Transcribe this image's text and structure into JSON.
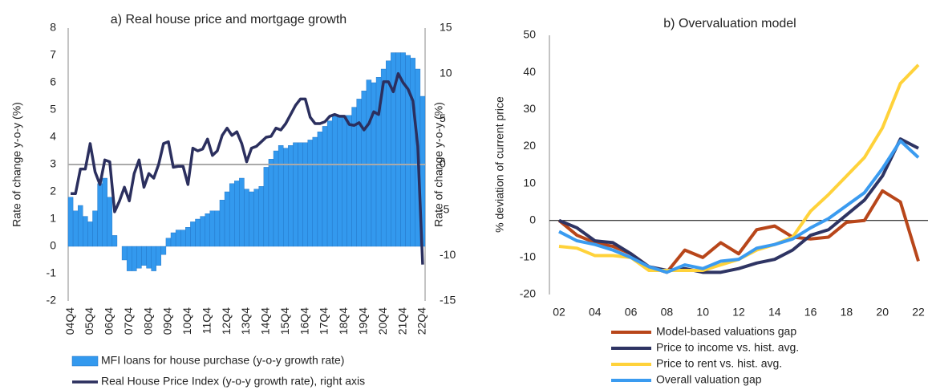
{
  "chart_data": [
    {
      "type": "bar",
      "title": "a) Real house price and mortgage growth",
      "ylabel": "Rate of change y-o-y (%)",
      "y2label": "Rate of change y-o-y (%)",
      "categories": [
        "04Q4",
        null,
        null,
        null,
        "05Q4",
        null,
        null,
        null,
        "06Q4",
        null,
        null,
        null,
        "07Q4",
        null,
        null,
        null,
        "08Q4",
        null,
        null,
        null,
        "09Q4",
        null,
        null,
        null,
        "10Q4",
        null,
        null,
        null,
        "11Q4",
        null,
        null,
        null,
        "12Q4",
        null,
        null,
        null,
        "13Q4",
        null,
        null,
        null,
        "14Q4",
        null,
        null,
        null,
        "15Q4",
        null,
        null,
        null,
        "16Q4",
        null,
        null,
        null,
        "17Q4",
        null,
        null,
        null,
        "18Q4",
        null,
        null,
        null,
        "19Q4",
        null,
        null,
        null,
        "20Q4",
        null,
        null,
        null,
        "21Q4",
        null,
        null,
        null,
        "22Q4"
      ],
      "ylim": [
        -2,
        8
      ],
      "yticks": [
        -2,
        -1,
        0,
        1,
        2,
        3,
        4,
        5,
        6,
        7,
        8
      ],
      "y2lim": [
        -15,
        15
      ],
      "y2ticks": [
        -15,
        -10,
        -5,
        0,
        5,
        10,
        15
      ],
      "series": [
        {
          "name": "MFI loans for house purchase (y-o-y growth rate)",
          "type": "bar",
          "color": "#3399ee",
          "values": [
            1.8,
            1.3,
            1.5,
            1.1,
            0.9,
            1.3,
            2.3,
            2.5,
            1.8,
            0.4,
            0.0,
            -0.5,
            -0.9,
            -0.9,
            -0.8,
            -0.7,
            -0.8,
            -0.9,
            -0.7,
            -0.3,
            0.3,
            0.5,
            0.6,
            0.6,
            0.7,
            0.9,
            1.0,
            1.1,
            1.2,
            1.3,
            1.3,
            1.7,
            2.0,
            2.3,
            2.4,
            2.5,
            2.1,
            2.0,
            2.1,
            2.2,
            2.9,
            3.2,
            3.5,
            3.7,
            3.6,
            3.7,
            3.8,
            3.8,
            3.8,
            3.9,
            4.0,
            4.2,
            4.4,
            4.6,
            4.8,
            4.8,
            4.8,
            4.8,
            5.1,
            5.4,
            5.7,
            6.1,
            6.0,
            6.2,
            6.5,
            6.8,
            7.1,
            7.1,
            7.1,
            7.0,
            6.9,
            6.5,
            5.5
          ]
        },
        {
          "name": "Real House Price Index (y-o-y growth rate), right axis",
          "type": "line",
          "axis": "y2",
          "color": "#2b2f5e",
          "values": [
            -3.2,
            -3.2,
            -0.5,
            -0.5,
            2.3,
            -0.8,
            -2.2,
            0.5,
            0.3,
            -5.2,
            -4.0,
            -2.5,
            -4.0,
            -1.0,
            0.5,
            -2.5,
            -1.0,
            -1.5,
            0.0,
            2.3,
            2.5,
            -0.3,
            -0.2,
            -0.2,
            -2.2,
            1.8,
            1.5,
            1.7,
            2.8,
            1.0,
            1.5,
            3.2,
            4.0,
            3.2,
            3.6,
            2.3,
            0.3,
            1.8,
            2.0,
            2.5,
            3.0,
            3.1,
            4.0,
            3.8,
            4.5,
            5.5,
            6.5,
            7.2,
            7.2,
            5.2,
            4.5,
            4.5,
            4.7,
            5.3,
            5.5,
            5.3,
            5.3,
            4.4,
            4.3,
            4.6,
            3.8,
            4.5,
            5.8,
            5.5,
            9.1,
            9.1,
            8.0,
            10.0,
            9.0,
            8.3,
            7.0,
            2.0,
            -11.0
          ]
        }
      ]
    },
    {
      "type": "line",
      "title": "b) Overvaluation model",
      "ylabel": "% deviation of current price",
      "categories": [
        "02",
        null,
        "04",
        null,
        "06",
        null,
        "08",
        null,
        "10",
        null,
        "12",
        null,
        "14",
        null,
        "16",
        null,
        "18",
        null,
        "20",
        null,
        "22"
      ],
      "ylim": [
        -20,
        50
      ],
      "yticks": [
        -20,
        -10,
        0,
        10,
        20,
        30,
        40,
        50
      ],
      "series": [
        {
          "name": "Model-based valuations gap",
          "color": "#b8461a",
          "values": [
            0,
            -4,
            -6,
            -7,
            -9,
            -12.5,
            -14,
            -8,
            -10,
            -6,
            -9,
            -2.5,
            -1.5,
            -4.5,
            -5,
            -4.5,
            -0.5,
            0,
            8,
            5,
            -11
          ]
        },
        {
          "name": "Price to income vs. hist. avg.",
          "color": "#2e3463",
          "values": [
            0,
            -2,
            -5.5,
            -6,
            -9,
            -12.5,
            -13.5,
            -13,
            -14,
            -14,
            -13,
            -11.5,
            -10.5,
            -8,
            -4,
            -2.5,
            1.5,
            5.5,
            12,
            22,
            19.5
          ]
        },
        {
          "name": "Price to rent vs. hist. avg.",
          "color": "#ffd23a",
          "values": [
            -7,
            -7.5,
            -9.5,
            -9.5,
            -10,
            -13.5,
            -13.5,
            -13.5,
            -13.5,
            -12,
            -10.5,
            -8,
            -6.5,
            -4.5,
            2.5,
            7,
            12,
            17,
            25,
            37,
            42
          ]
        },
        {
          "name": "Overall valuation gap",
          "color": "#3a9bf0",
          "values": [
            -3,
            -5.5,
            -6.5,
            -8,
            -10,
            -12.5,
            -14,
            -12,
            -13,
            -11,
            -10.5,
            -7.5,
            -6.5,
            -5,
            -2,
            0.5,
            4,
            7.5,
            14,
            21.5,
            17
          ]
        }
      ]
    }
  ]
}
